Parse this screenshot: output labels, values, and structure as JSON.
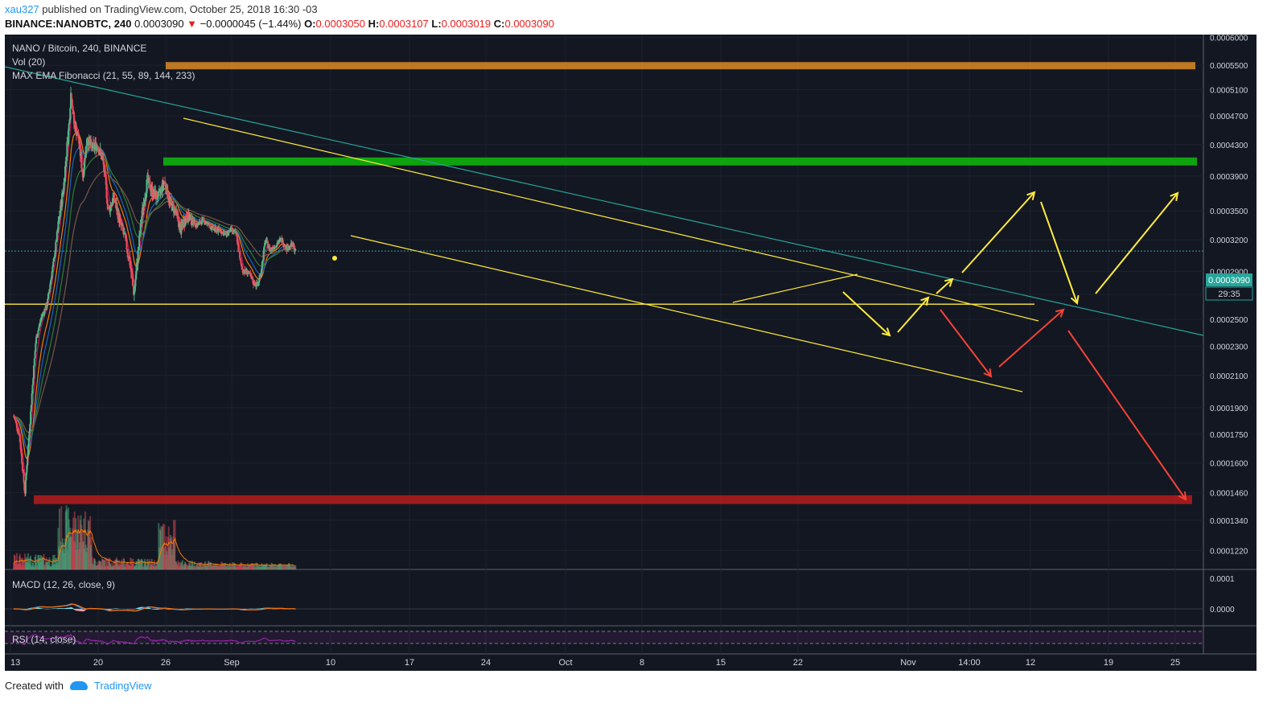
{
  "header": {
    "author": "xau327",
    "published_text": "published on TradingView.com, October 25, 2018 16:30 -03",
    "symbol": "BINANCE:NANOBTC, 240",
    "last": "0.0003090",
    "change_arrow": "▼",
    "change": "−0.0000045 (−1.44%)",
    "o_label": "O:",
    "o": "0.0003050",
    "h_label": "H:",
    "h": "0.0003107",
    "l_label": "L:",
    "l": "0.0003019",
    "c_label": "C:",
    "c": "0.0003090"
  },
  "legend": {
    "title": "NANO / Bitcoin, 240, BINANCE",
    "vol": "Vol (20)",
    "ema": "MAX EMA Fibonacci (21, 55, 89, 144, 233)",
    "macd": "MACD (12, 26, close, 9)",
    "rsi": "RSI (14, close)"
  },
  "colors": {
    "background": "#131722",
    "up": "#53b987",
    "down": "#eb4d5c",
    "resistance": "#f59a23",
    "support_green": "#0fa30f",
    "support_red": "#b71c1c",
    "trend": "#ffeb3b",
    "teal_trend": "#26a69a",
    "ema21": "#c2185b",
    "ema55": "#f57c00",
    "ema89": "#1565c0",
    "ema144": "#2e7d32",
    "ema233": "#795548",
    "rsi": "#9c27b0",
    "projection_up": "#ffeb3b",
    "projection_down": "#f44336"
  },
  "price_badge": {
    "value": "0.0003090",
    "timer": "29:35"
  },
  "chart_data": {
    "type": "candlestick",
    "x_axis_labels": [
      "13",
      "20",
      "26",
      "Sep",
      "10",
      "17",
      "24",
      "Oct",
      "8",
      "15",
      "22",
      "Nov",
      "14:00",
      "12",
      "19",
      "25"
    ],
    "y_axis_labels": [
      "0.0006000",
      "0.0005500",
      "0.0005100",
      "0.0004700",
      "0.0004300",
      "0.0003900",
      "0.0003500",
      "0.0003200",
      "0.0002900",
      "0.0002700",
      "0.0002500",
      "0.0002300",
      "0.0002100",
      "0.0001900",
      "0.0001750",
      "0.0001600",
      "0.0001460",
      "0.0001340",
      "0.0001220"
    ],
    "y_scale": "log",
    "ylim": [
      0.000115,
      0.000605
    ],
    "last_price": 0.000309,
    "price_path": [
      [
        0.0,
        0.000185
      ],
      [
        0.5,
        0.000175
      ],
      [
        1.0,
        0.000145
      ],
      [
        1.5,
        0.000185
      ],
      [
        2.0,
        0.000235
      ],
      [
        2.5,
        0.000252
      ],
      [
        3.0,
        0.000262
      ],
      [
        3.6,
        0.0003
      ],
      [
        4.0,
        0.000335
      ],
      [
        4.5,
        0.00038
      ],
      [
        4.95,
        0.000455
      ],
      [
        5.15,
        0.00051
      ],
      [
        5.4,
        0.00046
      ],
      [
        5.8,
        0.00044
      ],
      [
        6.2,
        0.00039
      ],
      [
        6.6,
        0.00044
      ],
      [
        7.0,
        0.000425
      ],
      [
        7.5,
        0.00043
      ],
      [
        8.0,
        0.00041
      ],
      [
        8.5,
        0.00035
      ],
      [
        9.0,
        0.000365
      ],
      [
        9.5,
        0.00034
      ],
      [
        10.0,
        0.00032
      ],
      [
        10.4,
        0.0003
      ],
      [
        10.8,
        0.00027
      ],
      [
        11.0,
        0.00029
      ],
      [
        11.5,
        0.000345
      ],
      [
        12.0,
        0.000385
      ],
      [
        12.5,
        0.00037
      ],
      [
        13.0,
        0.000365
      ],
      [
        13.5,
        0.000385
      ],
      [
        14.0,
        0.00036
      ],
      [
        14.5,
        0.00035
      ],
      [
        15.0,
        0.00033
      ],
      [
        15.5,
        0.000345
      ],
      [
        16.0,
        0.00034
      ],
      [
        16.5,
        0.000335
      ],
      [
        17.0,
        0.00034
      ],
      [
        17.5,
        0.000335
      ],
      [
        18.0,
        0.00033
      ],
      [
        18.5,
        0.00033
      ],
      [
        19.0,
        0.000325
      ],
      [
        19.5,
        0.00033
      ],
      [
        20.0,
        0.000325
      ],
      [
        20.3,
        0.0003
      ],
      [
        20.6,
        0.00029
      ],
      [
        21.0,
        0.00029
      ],
      [
        21.5,
        0.00028
      ],
      [
        21.9,
        0.000278
      ],
      [
        22.2,
        0.00029
      ],
      [
        22.6,
        0.00032
      ],
      [
        23.0,
        0.00031
      ],
      [
        23.5,
        0.000315
      ],
      [
        24.0,
        0.00032
      ],
      [
        24.5,
        0.000312
      ],
      [
        25.0,
        0.000315
      ],
      [
        25.3,
        0.000309
      ]
    ],
    "x_days_per_label": {
      "13": 0,
      "20": 7,
      "26": 13,
      "Sep": 19,
      "10": 28,
      "17": 35,
      "24": 42,
      "Oct": 49,
      "8": 56,
      "15": 63,
      "22": 70,
      "Nov": 80
    },
    "horizontal_levels": [
      {
        "name": "resistance-orange",
        "price": 0.00055
      },
      {
        "name": "resistance-green",
        "price": 0.000408
      },
      {
        "name": "support-yellow",
        "price": 0.000262
      },
      {
        "name": "support-red",
        "price": 0.000143
      }
    ]
  }
}
